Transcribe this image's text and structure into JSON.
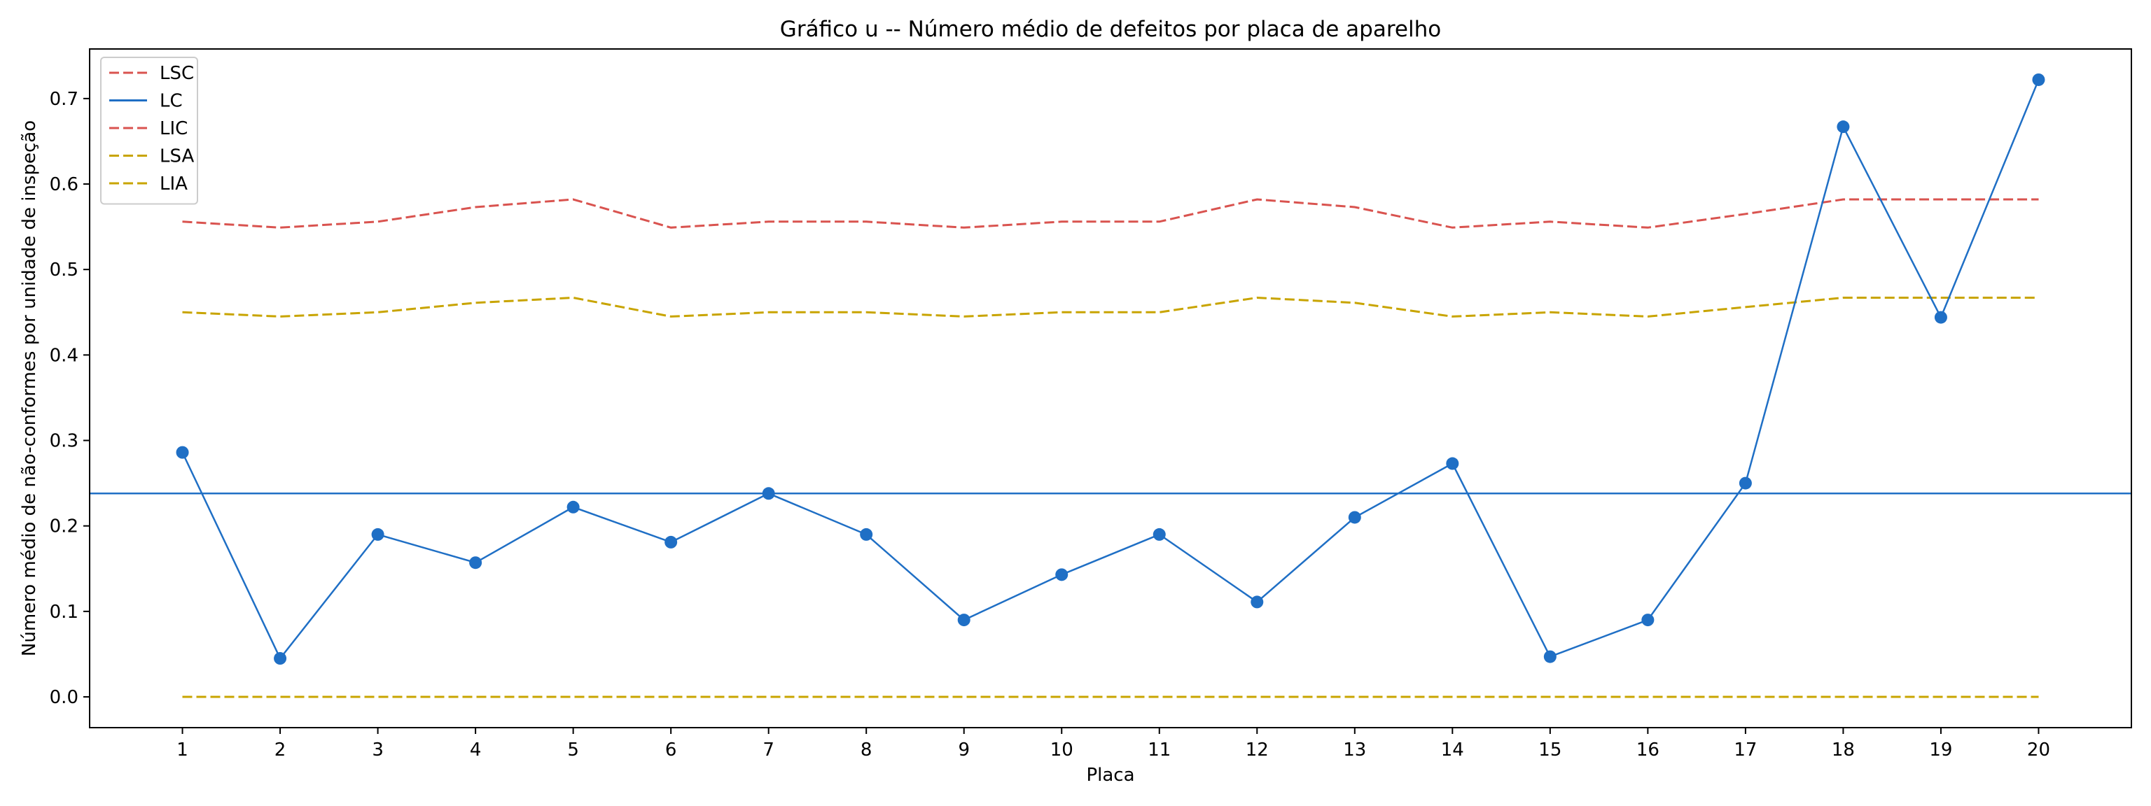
{
  "chart_data": {
    "type": "line",
    "title": "Gráfico u -- Número médio de defeitos por placa de aparelho",
    "xlabel": "Placa",
    "ylabel": "Número médio de não-conformes por unidade de inspeção",
    "x": [
      1,
      2,
      3,
      4,
      5,
      6,
      7,
      8,
      9,
      10,
      11,
      12,
      13,
      14,
      15,
      16,
      17,
      18,
      19,
      20
    ],
    "x_tick_labels": [
      "1",
      "2",
      "3",
      "4",
      "5",
      "6",
      "7",
      "8",
      "9",
      "10",
      "11",
      "12",
      "13",
      "14",
      "15",
      "16",
      "17",
      "18",
      "19",
      "20"
    ],
    "xlim": [
      0.05,
      20.95
    ],
    "ylim": [
      -0.036,
      0.758
    ],
    "y_ticks": [
      0.0,
      0.1,
      0.2,
      0.3,
      0.4,
      0.5,
      0.6,
      0.7
    ],
    "y_tick_labels": [
      "0.0",
      "0.1",
      "0.2",
      "0.3",
      "0.4",
      "0.5",
      "0.6",
      "0.7"
    ],
    "grid": false,
    "legend_position": "top-left",
    "series": [
      {
        "name": "LSC",
        "style": "dashed",
        "color": "#d9534f",
        "values": [
          0.556,
          0.549,
          0.556,
          0.573,
          0.582,
          0.549,
          0.556,
          0.556,
          0.549,
          0.556,
          0.556,
          0.582,
          0.573,
          0.549,
          0.556,
          0.549,
          0.565,
          0.582,
          0.582,
          0.582
        ]
      },
      {
        "name": "LC",
        "style": "solid-horizontal",
        "color": "#1f6fc5",
        "value": 0.238
      },
      {
        "name": "LIC",
        "style": "dashed",
        "color": "#d9534f",
        "values": [
          0,
          0,
          0,
          0,
          0,
          0,
          0,
          0,
          0,
          0,
          0,
          0,
          0,
          0,
          0,
          0,
          0,
          0,
          0,
          0
        ]
      },
      {
        "name": "LSA",
        "style": "dashed",
        "color": "#c8a400",
        "values": [
          0.45,
          0.445,
          0.45,
          0.461,
          0.467,
          0.445,
          0.45,
          0.45,
          0.445,
          0.45,
          0.45,
          0.467,
          0.461,
          0.445,
          0.45,
          0.445,
          0.456,
          0.467,
          0.467,
          0.467
        ]
      },
      {
        "name": "LIA",
        "style": "dashed",
        "color": "#c8a400",
        "values": [
          0,
          0,
          0,
          0,
          0,
          0,
          0,
          0,
          0,
          0,
          0,
          0,
          0,
          0,
          0,
          0,
          0,
          0,
          0,
          0
        ]
      },
      {
        "style": "line-markers",
        "color": "#1f6fc5",
        "values": [
          0.286,
          0.045,
          0.19,
          0.157,
          0.222,
          0.181,
          0.238,
          0.19,
          0.09,
          0.143,
          0.19,
          0.111,
          0.21,
          0.273,
          0.047,
          0.09,
          0.25,
          0.667,
          0.444,
          0.722
        ]
      }
    ]
  }
}
